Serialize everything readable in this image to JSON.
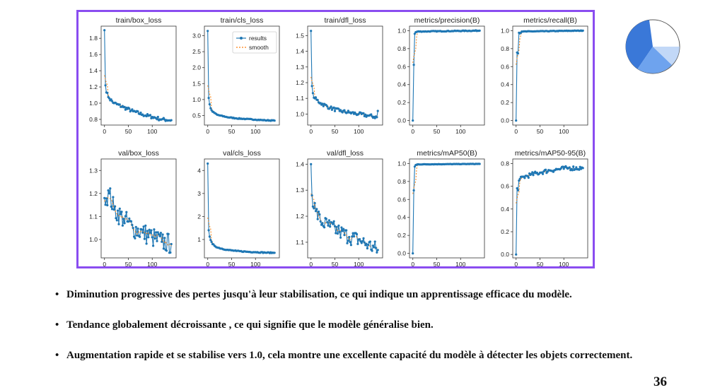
{
  "slide": {
    "page_number": "36",
    "bullets": [
      "Diminution progressive des pertes jusqu'à leur stabilisation, ce qui indique un apprentissage efficace du modèle.",
      "Tendance globalement décroissante , ce qui signifie que le modèle généralise bien.",
      "Augmentation rapide et se stabilise vers 1.0, cela montre une excellente capacité du modèle à détecter les objets correctement."
    ],
    "colors": {
      "frame": "#8a4df0",
      "results": "#1f77b4",
      "smooth": "#ff7f0e",
      "logo": "#3a78d8"
    }
  },
  "chart_data": [
    {
      "type": "line",
      "title": "train/box_loss",
      "ylim": [
        0.73,
        1.95
      ],
      "yticks": [
        0.8,
        1.0,
        1.2,
        1.4,
        1.6,
        1.8
      ],
      "xlim": [
        -7,
        150
      ],
      "xticks": [
        0,
        50,
        100
      ],
      "legend": null,
      "series": [
        {
          "name": "results",
          "anchors": [
            [
              0,
              1.9
            ],
            [
              1,
              1.4
            ],
            [
              2,
              1.22
            ],
            [
              5,
              1.12
            ],
            [
              10,
              1.06
            ],
            [
              20,
              1.0
            ],
            [
              40,
              0.95
            ],
            [
              60,
              0.9
            ],
            [
              80,
              0.86
            ],
            [
              100,
              0.83
            ],
            [
              120,
              0.8
            ],
            [
              140,
              0.79
            ]
          ],
          "noise": 0.022
        }
      ]
    },
    {
      "type": "line",
      "title": "train/cls_loss",
      "ylim": [
        0.2,
        3.3
      ],
      "yticks": [
        0.5,
        1.0,
        1.5,
        2.0,
        2.5,
        3.0
      ],
      "xlim": [
        -7,
        150
      ],
      "xticks": [
        0,
        50,
        100
      ],
      "legend": {
        "position": "top-right",
        "entries": [
          "results",
          "smooth"
        ]
      },
      "series": [
        {
          "name": "results",
          "anchors": [
            [
              0,
              3.15
            ],
            [
              1,
              1.5
            ],
            [
              2,
              1.05
            ],
            [
              5,
              0.75
            ],
            [
              10,
              0.62
            ],
            [
              20,
              0.52
            ],
            [
              40,
              0.45
            ],
            [
              60,
              0.41
            ],
            [
              80,
              0.39
            ],
            [
              100,
              0.37
            ],
            [
              120,
              0.35
            ],
            [
              140,
              0.34
            ]
          ],
          "noise": 0.012
        }
      ]
    },
    {
      "type": "line",
      "title": "train/dfl_loss",
      "ylim": [
        0.93,
        1.56
      ],
      "yticks": [
        1.0,
        1.1,
        1.2,
        1.3,
        1.4,
        1.5
      ],
      "xlim": [
        -7,
        150
      ],
      "xticks": [
        0,
        50,
        100
      ],
      "legend": null,
      "series": [
        {
          "name": "results",
          "anchors": [
            [
              0,
              1.53
            ],
            [
              1,
              1.25
            ],
            [
              3,
              1.13
            ],
            [
              8,
              1.1
            ],
            [
              20,
              1.07
            ],
            [
              40,
              1.04
            ],
            [
              60,
              1.02
            ],
            [
              80,
              1.01
            ],
            [
              100,
              1.0
            ],
            [
              120,
              0.99
            ],
            [
              138,
              0.98
            ],
            [
              140,
              1.02
            ]
          ],
          "noise": 0.012
        }
      ]
    },
    {
      "type": "line",
      "title": "metrics/precision(B)",
      "ylim": [
        -0.05,
        1.05
      ],
      "yticks": [
        0.0,
        0.2,
        0.4,
        0.6,
        0.8,
        1.0
      ],
      "xlim": [
        -7,
        150
      ],
      "xticks": [
        0,
        50,
        100
      ],
      "legend": null,
      "series": [
        {
          "name": "results",
          "anchors": [
            [
              0,
              0.0
            ],
            [
              1,
              0.75
            ],
            [
              2,
              0.62
            ],
            [
              3,
              0.95
            ],
            [
              5,
              0.98
            ],
            [
              10,
              0.99
            ],
            [
              140,
              1.0
            ]
          ],
          "noise": 0.004
        }
      ]
    },
    {
      "type": "line",
      "title": "metrics/recall(B)",
      "ylim": [
        -0.05,
        1.05
      ],
      "yticks": [
        0.0,
        0.2,
        0.4,
        0.6,
        0.8,
        1.0
      ],
      "xlim": [
        -7,
        150
      ],
      "xticks": [
        0,
        50,
        100
      ],
      "legend": null,
      "series": [
        {
          "name": "results",
          "anchors": [
            [
              0,
              0.0
            ],
            [
              1,
              1.0
            ],
            [
              3,
              0.52
            ],
            [
              5,
              0.98
            ],
            [
              8,
              0.97
            ],
            [
              12,
              0.99
            ],
            [
              140,
              1.0
            ]
          ],
          "noise": 0.003
        }
      ]
    },
    {
      "type": "line",
      "title": "val/box_loss",
      "ylim": [
        0.92,
        1.35
      ],
      "yticks": [
        1.0,
        1.1,
        1.2,
        1.3
      ],
      "xlim": [
        -7,
        150
      ],
      "xticks": [
        0,
        50,
        100
      ],
      "legend": null,
      "series": [
        {
          "name": "results",
          "anchors": [
            [
              0,
              1.18
            ],
            [
              10,
              1.2
            ],
            [
              20,
              1.13
            ],
            [
              40,
              1.09
            ],
            [
              60,
              1.05
            ],
            [
              80,
              1.03
            ],
            [
              100,
              1.01
            ],
            [
              120,
              0.99
            ],
            [
              140,
              0.98
            ]
          ],
          "noise": 0.045
        }
      ]
    },
    {
      "type": "line",
      "title": "val/cls_loss",
      "ylim": [
        0.2,
        4.5
      ],
      "yticks": [
        1,
        2,
        3,
        4
      ],
      "xlim": [
        -7,
        150
      ],
      "xticks": [
        0,
        50,
        100
      ],
      "legend": null,
      "series": [
        {
          "name": "results",
          "anchors": [
            [
              0,
              4.3
            ],
            [
              1,
              3.0
            ],
            [
              2,
              1.4
            ],
            [
              5,
              1.0
            ],
            [
              10,
              0.8
            ],
            [
              20,
              0.65
            ],
            [
              40,
              0.55
            ],
            [
              60,
              0.5
            ],
            [
              80,
              0.47
            ],
            [
              100,
              0.45
            ],
            [
              120,
              0.43
            ],
            [
              140,
              0.42
            ]
          ],
          "noise": 0.02
        }
      ]
    },
    {
      "type": "line",
      "title": "val/dfl_loss",
      "ylim": [
        1.04,
        1.42
      ],
      "yticks": [
        1.1,
        1.2,
        1.3,
        1.4
      ],
      "xlim": [
        -7,
        150
      ],
      "xticks": [
        0,
        50,
        100
      ],
      "legend": null,
      "series": [
        {
          "name": "results",
          "anchors": [
            [
              0,
              1.4
            ],
            [
              2,
              1.28
            ],
            [
              10,
              1.22
            ],
            [
              20,
              1.18
            ],
            [
              40,
              1.16
            ],
            [
              60,
              1.14
            ],
            [
              80,
              1.12
            ],
            [
              100,
              1.11
            ],
            [
              120,
              1.09
            ],
            [
              140,
              1.07
            ]
          ],
          "noise": 0.03
        }
      ]
    },
    {
      "type": "line",
      "title": "metrics/mAP50(B)",
      "ylim": [
        -0.05,
        1.05
      ],
      "yticks": [
        0.0,
        0.2,
        0.4,
        0.6,
        0.8,
        1.0
      ],
      "xlim": [
        -7,
        150
      ],
      "xticks": [
        0,
        50,
        100
      ],
      "legend": null,
      "series": [
        {
          "name": "results",
          "anchors": [
            [
              0,
              0.0
            ],
            [
              1,
              0.82
            ],
            [
              2,
              0.7
            ],
            [
              3,
              0.95
            ],
            [
              5,
              0.98
            ],
            [
              10,
              0.99
            ],
            [
              140,
              0.995
            ]
          ],
          "noise": 0.002
        }
      ]
    },
    {
      "type": "line",
      "title": "metrics/mAP50-95(B)",
      "ylim": [
        -0.03,
        0.84
      ],
      "yticks": [
        0.0,
        0.2,
        0.4,
        0.6,
        0.8
      ],
      "xlim": [
        -7,
        150
      ],
      "xticks": [
        0,
        50,
        100
      ],
      "legend": null,
      "series": [
        {
          "name": "results",
          "anchors": [
            [
              0,
              0.0
            ],
            [
              1,
              0.6
            ],
            [
              3,
              0.55
            ],
            [
              6,
              0.65
            ],
            [
              15,
              0.68
            ],
            [
              30,
              0.7
            ],
            [
              50,
              0.72
            ],
            [
              70,
              0.74
            ],
            [
              90,
              0.75
            ],
            [
              110,
              0.76
            ],
            [
              140,
              0.76
            ]
          ],
          "noise": 0.02
        }
      ]
    }
  ]
}
